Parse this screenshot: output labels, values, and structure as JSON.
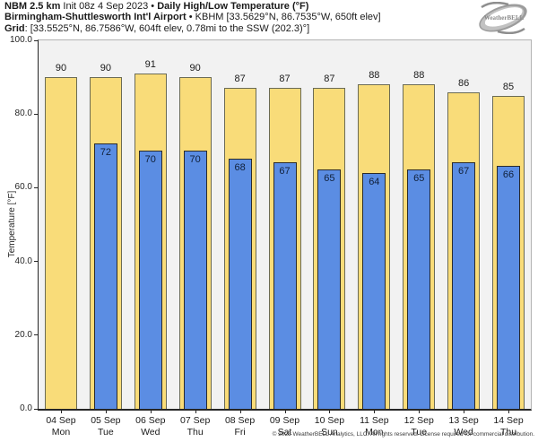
{
  "header": {
    "line1": {
      "model_bold": "NBM 2.5 km",
      "init": "Init 08z 4 Sep 2023",
      "bullet": "•",
      "title_bold": "Daily High/Low Temperature (°F)"
    },
    "line2": {
      "station_bold": "Birmingham-Shuttlesworth Int'l Airport",
      "bullet": "•",
      "station_info": "KBHM [33.5629°N, 86.7535°W, 650ft elev]"
    },
    "line3": {
      "grid_bold": "Grid",
      "grid_info": ": [33.5525°N, 86.7586°W, 604ft elev, 0.78mi to the SSW (202.3)°]"
    }
  },
  "logo": {
    "text": "WeatherBELL"
  },
  "footer": {
    "copyright": "© 2023 WeatherBELL Analytics, LLC. All rights reserved. License required for commercial distribution."
  },
  "chart_data": {
    "type": "bar",
    "title": "NBM 2.5 km Init 08z 4 Sep 2023 • Daily High/Low Temperature (°F)",
    "subtitle": "Birmingham-Shuttlesworth Int'l Airport • KBHM",
    "xlabel": "",
    "ylabel": "Temperature [°F]",
    "ylim": [
      0,
      100
    ],
    "yticks": [
      0,
      20,
      40,
      60,
      80,
      100
    ],
    "ytick_labels": [
      "0.0",
      "20.0",
      "40.0",
      "60.0",
      "80.0",
      "100.0"
    ],
    "grid": false,
    "legend_position": "none",
    "plot_bg": "#f2f2f2",
    "categories": [
      {
        "date": "04 Sep",
        "day": "Mon"
      },
      {
        "date": "05 Sep",
        "day": "Tue"
      },
      {
        "date": "06 Sep",
        "day": "Wed"
      },
      {
        "date": "07 Sep",
        "day": "Thu"
      },
      {
        "date": "08 Sep",
        "day": "Fri"
      },
      {
        "date": "09 Sep",
        "day": "Sat"
      },
      {
        "date": "10 Sep",
        "day": "Sun"
      },
      {
        "date": "11 Sep",
        "day": "Mon"
      },
      {
        "date": "12 Sep",
        "day": "Tue"
      },
      {
        "date": "13 Sep",
        "day": "Wed"
      },
      {
        "date": "14 Sep",
        "day": "Thu"
      }
    ],
    "series": [
      {
        "name": "Daily High",
        "color": "#f9dc79",
        "values": [
          90,
          90,
          91,
          90,
          87,
          87,
          87,
          88,
          88,
          86,
          85
        ]
      },
      {
        "name": "Daily Low",
        "color": "#5b8de3",
        "values": [
          null,
          72,
          70,
          70,
          68,
          67,
          65,
          64,
          65,
          67,
          66
        ]
      }
    ]
  }
}
